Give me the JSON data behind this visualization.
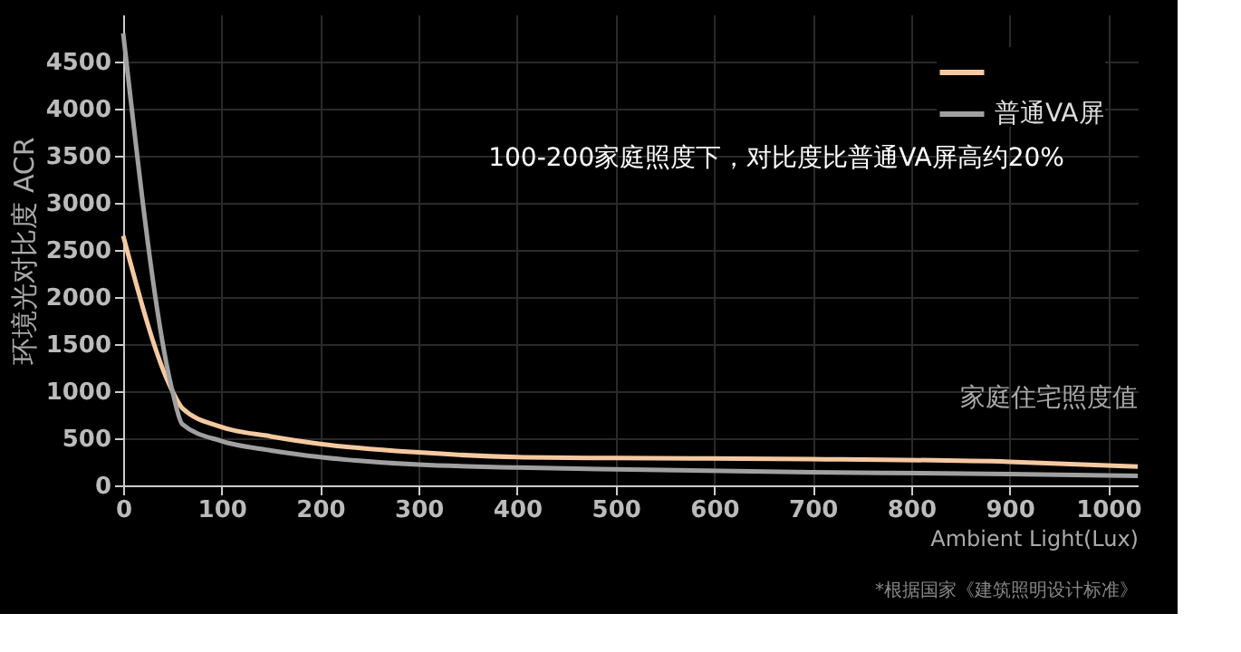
{
  "chart_data": {
    "type": "line",
    "ylabel": "环境光对比度 ACR",
    "xlabel": "Ambient Light(Lux)",
    "annotations": [
      "家庭住宅照度值",
      "100-200家庭照度下，对比度比普通VA屏高约20%",
      "*根据国家《建筑照明设计标准》"
    ],
    "x": [
      0,
      50,
      60,
      100,
      150,
      200,
      300,
      400,
      500,
      700,
      900,
      1030
    ],
    "series": [
      {
        "color": "#f5c9a0",
        "values": [
          2650,
          1000,
          820,
          620,
          520,
          440,
          350,
          300,
          290,
          280,
          250,
          200
        ]
      },
      {
        "name": "普通VA屏",
        "color": "#a0a0a0",
        "values": [
          4800,
          1000,
          650,
          470,
          370,
          300,
          220,
          190,
          170,
          140,
          120,
          100
        ]
      }
    ],
    "xlim": [
      0,
      1030
    ],
    "ylim": [
      0,
      5000
    ],
    "xticks": [
      0,
      100,
      200,
      300,
      400,
      500,
      600,
      700,
      800,
      900,
      1000
    ],
    "yticks": [
      0,
      500,
      1000,
      1500,
      2000,
      2500,
      3000,
      3500,
      4000,
      4500
    ],
    "grid": true,
    "legend": "top right",
    "marker": "none",
    "line_style": "solid"
  }
}
